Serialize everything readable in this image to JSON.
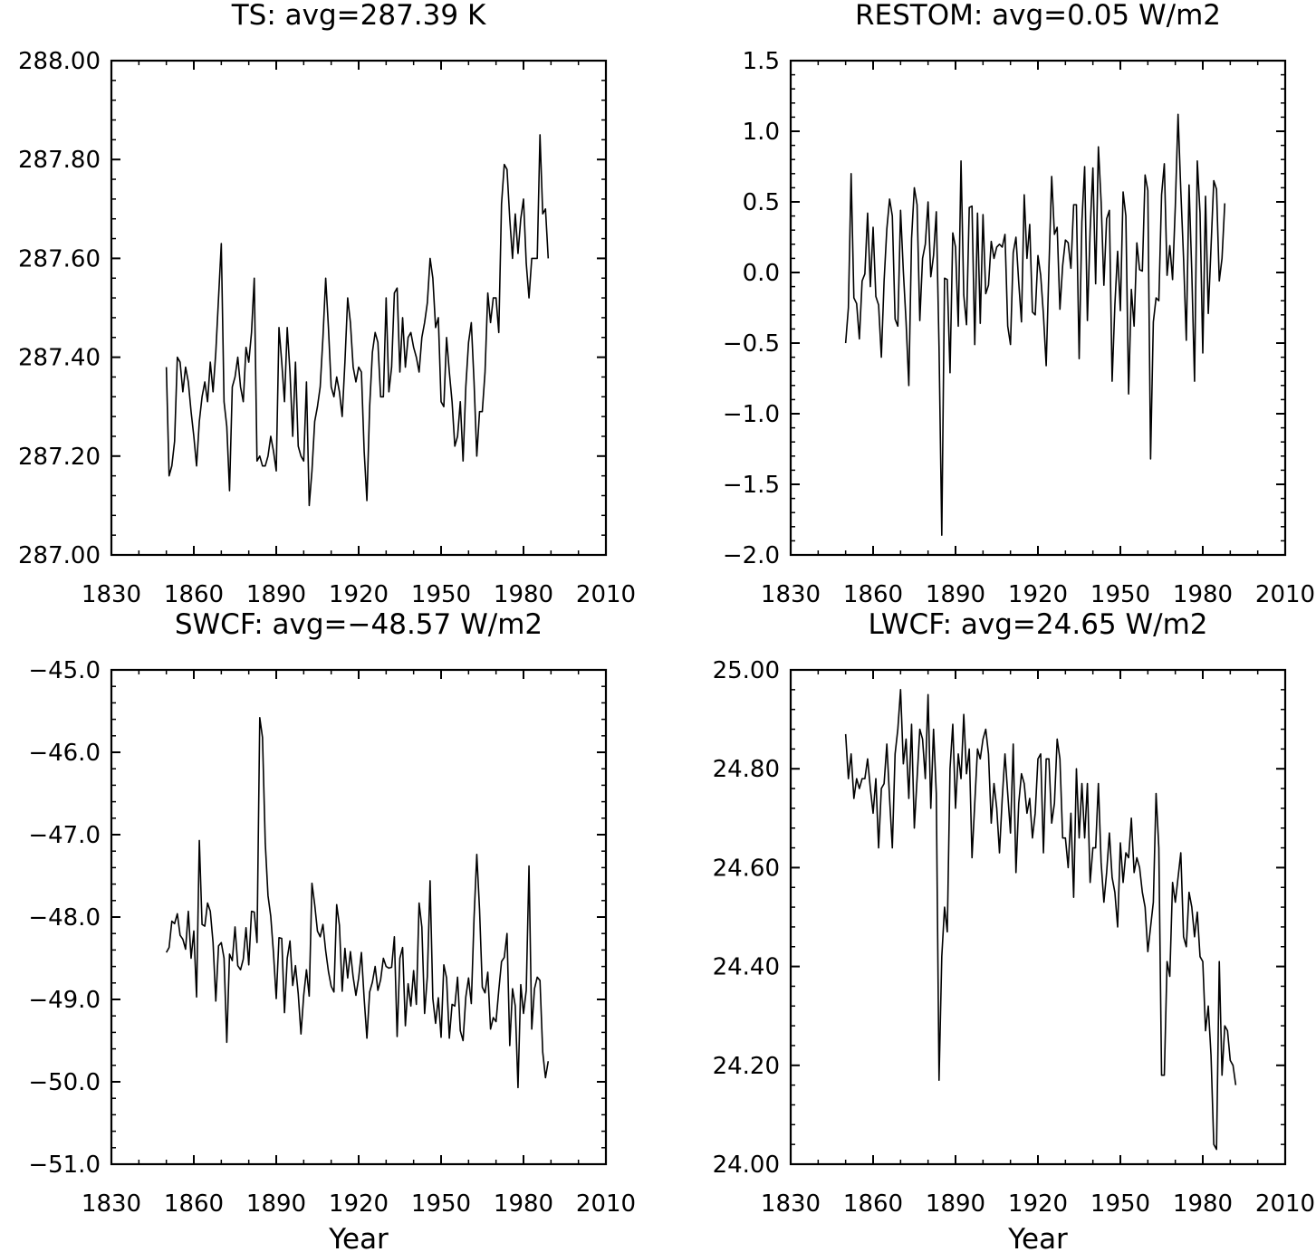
{
  "chart_data": [
    {
      "type": "line",
      "title": "TS: avg=287.39 K",
      "xlabel": "",
      "ylabel": "",
      "xlim": [
        1830,
        2010
      ],
      "ylim": [
        287.0,
        288.0
      ],
      "x_ticks": [
        "1830",
        "1860",
        "1890",
        "1920",
        "1950",
        "1980",
        "2010"
      ],
      "y_ticks": [
        "287.00",
        "287.20",
        "287.40",
        "287.60",
        "287.80",
        "288.00"
      ],
      "grid": false,
      "x_start": 1850,
      "x_step": 1,
      "values": [
        287.38,
        287.16,
        287.18,
        287.23,
        287.4,
        287.39,
        287.33,
        287.38,
        287.35,
        287.29,
        287.24,
        287.18,
        287.27,
        287.32,
        287.35,
        287.31,
        287.39,
        287.33,
        287.41,
        287.52,
        287.63,
        287.31,
        287.26,
        287.13,
        287.34,
        287.36,
        287.4,
        287.34,
        287.31,
        287.42,
        287.39,
        287.45,
        287.56,
        287.19,
        287.2,
        287.18,
        287.18,
        287.2,
        287.24,
        287.21,
        287.17,
        287.46,
        287.39,
        287.31,
        287.46,
        287.37,
        287.24,
        287.39,
        287.22,
        287.2,
        287.19,
        287.35,
        287.1,
        287.17,
        287.27,
        287.3,
        287.34,
        287.44,
        287.56,
        287.46,
        287.34,
        287.32,
        287.36,
        287.33,
        287.28,
        287.39,
        287.52,
        287.47,
        287.38,
        287.35,
        287.38,
        287.37,
        287.21,
        287.11,
        287.3,
        287.41,
        287.45,
        287.43,
        287.32,
        287.32,
        287.52,
        287.33,
        287.38,
        287.53,
        287.54,
        287.37,
        287.48,
        287.38,
        287.44,
        287.45,
        287.42,
        287.4,
        287.37,
        287.44,
        287.47,
        287.51,
        287.6,
        287.56,
        287.46,
        287.48,
        287.31,
        287.3,
        287.44,
        287.37,
        287.31,
        287.22,
        287.24,
        287.31,
        287.19,
        287.34,
        287.43,
        287.47,
        287.35,
        287.2,
        287.29,
        287.29,
        287.37,
        287.53,
        287.47,
        287.52,
        287.52,
        287.45,
        287.71,
        287.79,
        287.78,
        287.68,
        287.6,
        287.69,
        287.61,
        287.68,
        287.72,
        287.59,
        287.52,
        287.6,
        287.6,
        287.6,
        287.85,
        287.69,
        287.7,
        287.6
      ]
    },
    {
      "type": "line",
      "title": "RESTOM: avg=0.05 W/m2",
      "xlabel": "",
      "ylabel": "",
      "xlim": [
        1830,
        2010
      ],
      "ylim": [
        -2.0,
        1.5
      ],
      "x_ticks": [
        "1830",
        "1860",
        "1890",
        "1920",
        "1950",
        "1980",
        "2010"
      ],
      "y_ticks": [
        "−2.0",
        "−1.5",
        "−1.0",
        "−0.5",
        "0.0",
        "0.5",
        "1.0",
        "1.5"
      ],
      "grid": false,
      "x_start": 1850,
      "x_step": 1,
      "values": [
        -0.5,
        -0.25,
        0.7,
        -0.18,
        -0.22,
        -0.47,
        -0.06,
        -0.01,
        0.42,
        -0.1,
        0.32,
        -0.17,
        -0.23,
        -0.6,
        -0.06,
        0.31,
        0.52,
        0.4,
        -0.33,
        -0.38,
        0.44,
        0.01,
        -0.35,
        -0.8,
        0.24,
        0.6,
        0.48,
        -0.34,
        0.1,
        0.2,
        0.5,
        -0.03,
        0.12,
        0.43,
        -0.53,
        -1.86,
        -0.04,
        -0.05,
        -0.71,
        0.28,
        0.18,
        -0.38,
        0.79,
        -0.16,
        -0.37,
        0.46,
        0.47,
        -0.51,
        0.42,
        -0.36,
        0.41,
        -0.15,
        -0.09,
        0.22,
        0.1,
        0.18,
        0.2,
        0.18,
        0.27,
        -0.38,
        -0.51,
        0.14,
        0.25,
        -0.07,
        -0.35,
        0.55,
        0.1,
        0.34,
        -0.28,
        -0.3,
        0.12,
        -0.02,
        -0.3,
        -0.66,
        0.03,
        0.68,
        0.27,
        0.32,
        -0.26,
        0.05,
        0.23,
        0.21,
        0.03,
        0.48,
        0.48,
        -0.61,
        0.36,
        0.75,
        -0.34,
        0.3,
        0.74,
        -0.08,
        0.89,
        0.5,
        -0.09,
        0.38,
        0.44,
        -0.77,
        -0.23,
        0.15,
        -0.27,
        0.57,
        0.4,
        -0.86,
        -0.12,
        -0.38,
        0.21,
        0.02,
        0.01,
        0.69,
        0.58,
        -1.32,
        -0.35,
        -0.18,
        -0.2,
        0.55,
        0.77,
        -0.02,
        0.19,
        -0.05,
        0.47,
        1.12,
        0.58,
        0.1,
        -0.48,
        0.62,
        0.0,
        -0.77,
        0.79,
        0.42,
        -0.57,
        0.54,
        -0.29,
        0.18,
        0.65,
        0.59,
        -0.06,
        0.1,
        0.49
      ]
    },
    {
      "type": "line",
      "title": "SWCF: avg=−48.57 W/m2",
      "xlabel": "Year",
      "ylabel": "",
      "xlim": [
        1830,
        2010
      ],
      "ylim": [
        -51.0,
        -45.0
      ],
      "x_ticks": [
        "1830",
        "1860",
        "1890",
        "1920",
        "1950",
        "1980",
        "2010"
      ],
      "y_ticks": [
        "−51.0",
        "−50.0",
        "−49.0",
        "−48.0",
        "−47.0",
        "−46.0",
        "−45.0"
      ],
      "grid": false,
      "x_start": 1850,
      "x_step": 1,
      "values": [
        -48.43,
        -48.37,
        -48.05,
        -48.08,
        -47.96,
        -48.22,
        -48.27,
        -48.39,
        -47.93,
        -48.5,
        -48.17,
        -48.97,
        -47.07,
        -48.09,
        -48.11,
        -47.83,
        -47.93,
        -48.31,
        -49.02,
        -48.35,
        -48.31,
        -48.5,
        -49.52,
        -48.45,
        -48.53,
        -48.12,
        -48.59,
        -48.64,
        -48.51,
        -48.13,
        -48.58,
        -47.93,
        -47.94,
        -48.31,
        -45.58,
        -45.82,
        -47.1,
        -47.74,
        -47.99,
        -48.44,
        -48.99,
        -48.25,
        -48.26,
        -49.16,
        -48.5,
        -48.29,
        -48.83,
        -48.59,
        -48.93,
        -49.42,
        -48.95,
        -48.64,
        -48.96,
        -47.59,
        -47.85,
        -48.17,
        -48.24,
        -48.09,
        -48.41,
        -48.66,
        -48.84,
        -48.91,
        -47.85,
        -48.1,
        -48.9,
        -48.38,
        -48.74,
        -48.42,
        -48.73,
        -48.95,
        -48.74,
        -48.43,
        -48.99,
        -49.47,
        -48.91,
        -48.79,
        -48.6,
        -48.89,
        -48.76,
        -48.5,
        -48.6,
        -48.62,
        -48.61,
        -48.24,
        -49.45,
        -48.5,
        -48.37,
        -49.32,
        -48.81,
        -49.08,
        -48.65,
        -49.06,
        -47.83,
        -48.12,
        -49.17,
        -48.72,
        -47.56,
        -48.99,
        -49.29,
        -48.98,
        -49.46,
        -48.58,
        -48.74,
        -49.47,
        -49.06,
        -49.08,
        -48.73,
        -49.38,
        -49.5,
        -48.97,
        -48.74,
        -49.05,
        -48.01,
        -47.24,
        -47.91,
        -48.85,
        -48.92,
        -48.67,
        -49.36,
        -49.22,
        -49.27,
        -48.89,
        -48.54,
        -48.49,
        -48.2,
        -49.56,
        -48.87,
        -49.08,
        -50.07,
        -48.82,
        -49.17,
        -48.89,
        -47.38,
        -49.36,
        -48.87,
        -48.73,
        -48.77,
        -49.64,
        -49.95,
        -49.75
      ]
    },
    {
      "type": "line",
      "title": "LWCF: avg=24.65 W/m2",
      "xlabel": "Year",
      "ylabel": "",
      "xlim": [
        1830,
        2010
      ],
      "ylim": [
        24.0,
        25.0
      ],
      "x_ticks": [
        "1830",
        "1860",
        "1890",
        "1920",
        "1950",
        "1980",
        "2010"
      ],
      "y_ticks": [
        "24.00",
        "24.20",
        "24.40",
        "24.60",
        "24.80",
        "25.00"
      ],
      "grid": false,
      "x_start": 1850,
      "x_step": 1,
      "values": [
        24.87,
        24.78,
        24.83,
        24.74,
        24.78,
        24.76,
        24.78,
        24.78,
        24.82,
        24.76,
        24.71,
        24.78,
        24.64,
        24.76,
        24.77,
        24.85,
        24.74,
        24.64,
        24.83,
        24.88,
        24.96,
        24.81,
        24.86,
        24.74,
        24.89,
        24.68,
        24.78,
        24.88,
        24.86,
        24.78,
        24.95,
        24.72,
        24.88,
        24.75,
        24.17,
        24.42,
        24.52,
        24.47,
        24.8,
        24.89,
        24.72,
        24.83,
        24.78,
        24.91,
        24.79,
        24.84,
        24.62,
        24.73,
        24.84,
        24.82,
        24.86,
        24.88,
        24.83,
        24.69,
        24.77,
        24.72,
        24.63,
        24.74,
        24.83,
        24.75,
        24.67,
        24.85,
        24.59,
        24.73,
        24.79,
        24.77,
        24.71,
        24.74,
        24.66,
        24.71,
        24.82,
        24.83,
        24.63,
        24.82,
        24.82,
        24.69,
        24.73,
        24.86,
        24.82,
        24.66,
        24.66,
        24.6,
        24.71,
        24.54,
        24.8,
        24.66,
        24.77,
        24.66,
        24.77,
        24.57,
        24.64,
        24.64,
        24.77,
        24.61,
        24.53,
        24.59,
        24.67,
        24.58,
        24.55,
        24.48,
        24.65,
        24.57,
        24.63,
        24.62,
        24.7,
        24.59,
        24.62,
        24.6,
        24.55,
        24.52,
        24.43,
        24.48,
        24.53,
        24.75,
        24.64,
        24.18,
        24.18,
        24.41,
        24.38,
        24.57,
        24.53,
        24.58,
        24.63,
        24.46,
        24.44,
        24.55,
        24.52,
        24.46,
        24.51,
        24.42,
        24.41,
        24.27,
        24.32,
        24.22,
        24.04,
        24.03,
        24.41,
        24.18,
        24.28,
        24.27,
        24.21,
        24.2,
        24.16
      ]
    }
  ]
}
